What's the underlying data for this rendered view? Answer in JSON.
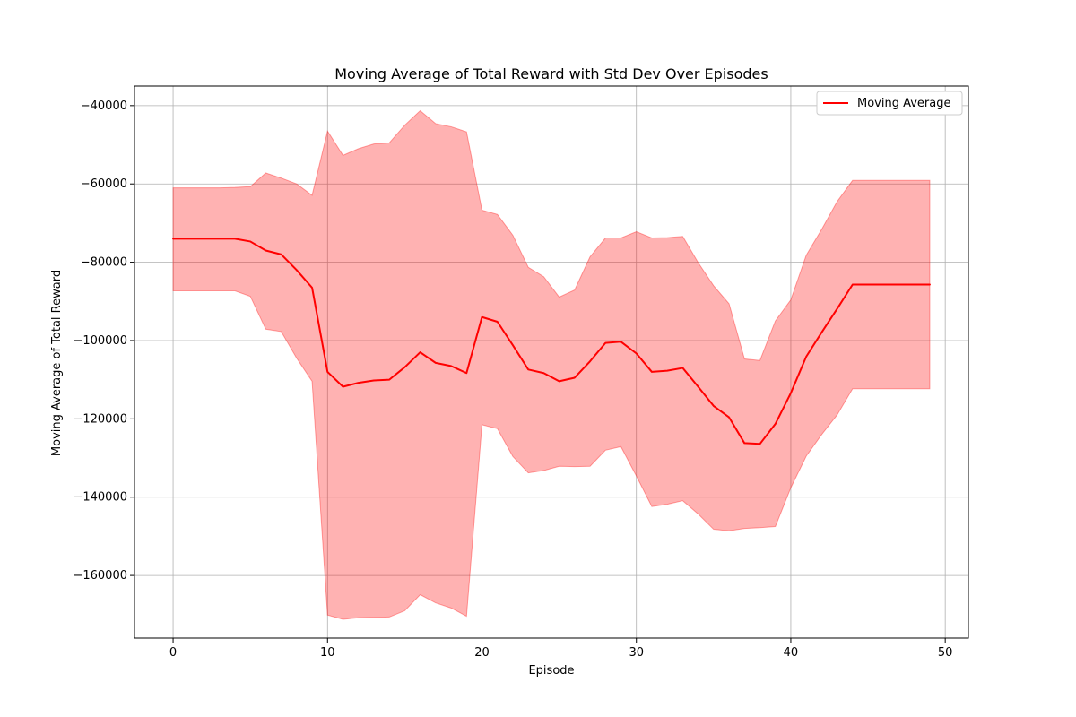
{
  "chart_data": {
    "type": "line",
    "title": "Moving Average of Total Reward with Std Dev Over Episodes",
    "xlabel": "Episode",
    "ylabel": "Moving Average of Total Reward",
    "xlim": [
      -2.5,
      51.5
    ],
    "ylim": [
      -176000,
      -35000
    ],
    "x_ticks": [
      0,
      10,
      20,
      30,
      40,
      50
    ],
    "y_ticks": [
      -40000,
      -60000,
      -80000,
      -100000,
      -120000,
      -140000,
      -160000
    ],
    "x_tick_labels": [
      "0",
      "10",
      "20",
      "30",
      "40",
      "50"
    ],
    "y_tick_labels": [
      "−40000",
      "−60000",
      "−80000",
      "−100000",
      "−120000",
      "−140000",
      "−160000"
    ],
    "grid": true,
    "legend_position": "top-right",
    "x": [
      0,
      1,
      2,
      3,
      4,
      5,
      6,
      7,
      8,
      9,
      10,
      11,
      12,
      13,
      14,
      15,
      16,
      17,
      18,
      19,
      20,
      21,
      22,
      23,
      24,
      25,
      26,
      27,
      28,
      29,
      30,
      31,
      32,
      33,
      34,
      35,
      36,
      37,
      38,
      39,
      40,
      41,
      42,
      43,
      44,
      45,
      46,
      47,
      48,
      49
    ],
    "series": [
      {
        "name": "Moving Average",
        "color": "#ff0000",
        "values": [
          -74000,
          -74000,
          -74000,
          -74000,
          -74000,
          -74700,
          -77000,
          -78000,
          -82000,
          -86500,
          -108000,
          -111800,
          -110800,
          -110200,
          -110000,
          -106800,
          -103000,
          -105700,
          -106500,
          -108300,
          -94000,
          -95200,
          -101200,
          -107400,
          -108300,
          -110400,
          -109500,
          -105300,
          -100600,
          -100300,
          -103300,
          -108000,
          -107700,
          -107000,
          -111800,
          -116700,
          -119600,
          -126200,
          -126400,
          -121300,
          -113400,
          -104100,
          -97900,
          -91900,
          -85700,
          -85700,
          -85700,
          -85700,
          -85700,
          -85700
        ]
      }
    ],
    "band": {
      "color": "#ff0000",
      "opacity": 0.3,
      "upper": [
        -61000,
        -61000,
        -61000,
        -61000,
        -60900,
        -60700,
        -57200,
        -58500,
        -60000,
        -62900,
        -46500,
        -52700,
        -51000,
        -49800,
        -49500,
        -45000,
        -41300,
        -44600,
        -45400,
        -46700,
        -66700,
        -67800,
        -73100,
        -81300,
        -83700,
        -88900,
        -87100,
        -78600,
        -73800,
        -73800,
        -72200,
        -73800,
        -73700,
        -73400,
        -80100,
        -86000,
        -90600,
        -104700,
        -105100,
        -95000,
        -89600,
        -78200,
        -71600,
        -64500,
        -59100,
        -59100,
        -59100,
        -59100,
        -59100,
        -59100
      ],
      "lower": [
        -87300,
        -87300,
        -87300,
        -87300,
        -87300,
        -88700,
        -97100,
        -97700,
        -104500,
        -110400,
        -170100,
        -171200,
        -170800,
        -170700,
        -170600,
        -169000,
        -164900,
        -167000,
        -168300,
        -170400,
        -121500,
        -122500,
        -129600,
        -133800,
        -133200,
        -132100,
        -132200,
        -132100,
        -128000,
        -127100,
        -134600,
        -142400,
        -141800,
        -140900,
        -144300,
        -148200,
        -148600,
        -148000,
        -147800,
        -147500,
        -137600,
        -129500,
        -124000,
        -119000,
        -112300,
        -112300,
        -112300,
        -112300,
        -112300,
        -112300
      ]
    }
  }
}
